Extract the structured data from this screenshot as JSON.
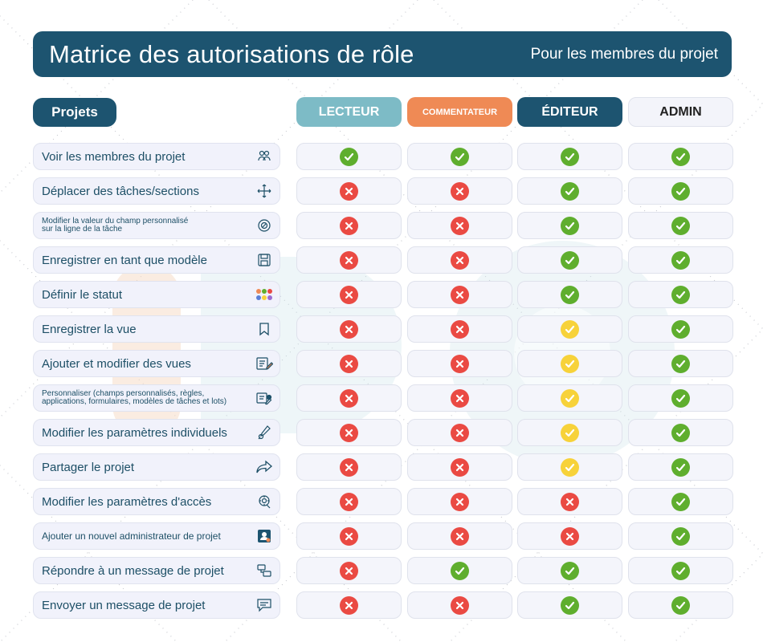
{
  "header": {
    "title": "Matrice des autorisations de rôle",
    "subtitle": "Pour les membres du projet"
  },
  "section_label": "Projets",
  "colors": {
    "header": "#1d5470",
    "lecteur": "#7dbbc6",
    "commentateur": "#ef8a55",
    "editeur": "#1d5470",
    "admin": "#f3f4fa",
    "allowed": "#5fae2e",
    "denied": "#ea4a43",
    "partial": "#f7d23a"
  },
  "columns": [
    {
      "label": "LECTEUR"
    },
    {
      "label": "COMMENTATEUR"
    },
    {
      "label": "ÉDITEUR"
    },
    {
      "label": "ADMIN"
    }
  ],
  "rows": [
    {
      "label": "Voir les membres du projet",
      "icon": "members-icon",
      "values": [
        "yes",
        "yes",
        "yes",
        "yes"
      ]
    },
    {
      "label": "Déplacer des tâches/sections",
      "icon": "move-icon",
      "values": [
        "no",
        "no",
        "yes",
        "yes"
      ]
    },
    {
      "label": "Modifier la valeur du champ personnalisé\nsur la ligne de la tâche",
      "icon": "custom-field-icon",
      "values": [
        "no",
        "no",
        "yes",
        "yes"
      ]
    },
    {
      "label": "Enregistrer en tant que modèle",
      "icon": "save-icon",
      "values": [
        "no",
        "no",
        "yes",
        "yes"
      ]
    },
    {
      "label": "Définir le statut",
      "icon": "status-dots-icon",
      "values": [
        "no",
        "no",
        "yes",
        "yes"
      ]
    },
    {
      "label": "Enregistrer la vue",
      "icon": "bookmark-icon",
      "values": [
        "no",
        "no",
        "partial",
        "yes"
      ]
    },
    {
      "label": "Ajouter et modifier des vues",
      "icon": "edit-view-icon",
      "values": [
        "no",
        "no",
        "partial",
        "yes"
      ]
    },
    {
      "label": "Personnaliser (champs personnalisés, règles,\napplications, formulaires, modèles de tâches et lots)",
      "icon": "customize-icon",
      "values": [
        "no",
        "no",
        "partial",
        "yes"
      ]
    },
    {
      "label": "Modifier les paramètres individuels",
      "icon": "settings-tool-icon",
      "values": [
        "no",
        "no",
        "partial",
        "yes"
      ]
    },
    {
      "label": "Partager le projet",
      "icon": "share-icon",
      "values": [
        "no",
        "no",
        "partial",
        "yes"
      ]
    },
    {
      "label": "Modifier les paramètres d'accès",
      "icon": "access-settings-icon",
      "values": [
        "no",
        "no",
        "no",
        "yes"
      ]
    },
    {
      "label": "Ajouter un nouvel administrateur de projet",
      "icon": "admin-user-icon",
      "values": [
        "no",
        "no",
        "no",
        "yes"
      ]
    },
    {
      "label": "Répondre à un message de projet",
      "icon": "reply-icon",
      "values": [
        "no",
        "yes",
        "yes",
        "yes"
      ]
    },
    {
      "label": "Envoyer un message de projet",
      "icon": "message-icon",
      "values": [
        "no",
        "no",
        "yes",
        "yes"
      ]
    }
  ]
}
